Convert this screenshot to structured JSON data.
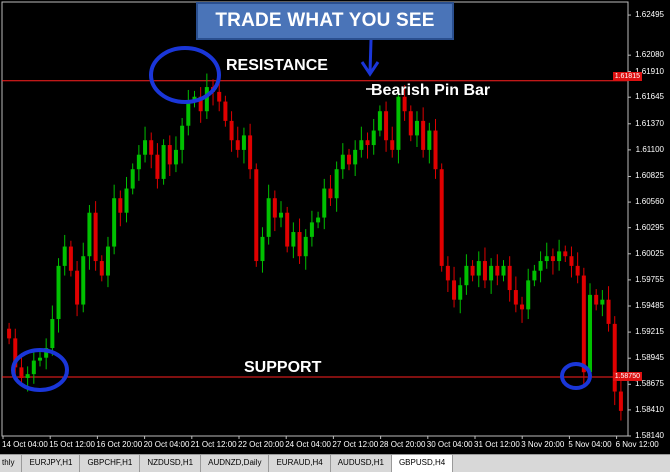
{
  "banner": "TRADE WHAT YOU SEE",
  "annotations": {
    "resistance": "RESISTANCE",
    "support": "SUPPORT",
    "pin_bar": "Bearish Pin Bar"
  },
  "price_scale": [
    "1.62495",
    "1.62080",
    "1.61910",
    "1.61645",
    "1.61370",
    "1.61100",
    "1.60825",
    "1.60560",
    "1.60295",
    "1.60025",
    "1.59755",
    "1.59485",
    "1.59215",
    "1.58945",
    "1.58675",
    "1.58410",
    "1.58140"
  ],
  "price_tags": {
    "resistance": "1.61815",
    "support": "1.58750"
  },
  "time_labels": [
    "14 Oct 04:00",
    "15 Oct 12:00",
    "16 Oct 20:00",
    "20 Oct 04:00",
    "21 Oct 12:00",
    "22 Oct 20:00",
    "24 Oct 04:00",
    "27 Oct 12:00",
    "28 Oct 20:00",
    "30 Oct 04:00",
    "31 Oct 12:00",
    "3 Nov 20:00",
    "5 Nov 04:00",
    "6 Nov 12:00"
  ],
  "tabs": [
    "thly",
    "EURJPY,H1",
    "GBPCHF,H1",
    "NZDUSD,H1",
    "AUDNZD,Daily",
    "EURAUD,H4",
    "AUDUSD,H1",
    "GBPUSD,H4"
  ],
  "active_tab": "GBPUSD,H4",
  "colors": {
    "up": "#00c000",
    "down": "#e00000",
    "level": "#ff2020",
    "circle": "#1a36d8",
    "banner": "#4a74b8"
  },
  "chart_data": {
    "type": "candlestick",
    "symbol": "GBPUSD,H4",
    "ylim": [
      1.5814,
      1.6263
    ],
    "resistance": 1.61815,
    "support": 1.5875,
    "closes": [
      1.5915,
      1.5885,
      1.5874,
      1.5878,
      1.5892,
      1.5895,
      1.5905,
      1.5935,
      1.599,
      1.601,
      1.5985,
      1.595,
      1.6,
      1.6045,
      1.5995,
      1.598,
      1.601,
      1.606,
      1.6045,
      1.607,
      1.609,
      1.6105,
      1.612,
      1.6105,
      1.608,
      1.6115,
      1.6095,
      1.611,
      1.6135,
      1.616,
      1.6165,
      1.615,
      1.6175,
      1.617,
      1.616,
      1.614,
      1.612,
      1.611,
      1.6125,
      1.609,
      1.5995,
      1.602,
      1.606,
      1.604,
      1.6045,
      1.601,
      1.6025,
      1.6,
      1.602,
      1.6035,
      1.604,
      1.607,
      1.606,
      1.609,
      1.6105,
      1.6095,
      1.611,
      1.612,
      1.6115,
      1.613,
      1.615,
      1.612,
      1.611,
      1.6165,
      1.615,
      1.6125,
      1.614,
      1.611,
      1.613,
      1.609,
      1.599,
      1.5975,
      1.5955,
      1.597,
      1.599,
      1.598,
      1.5995,
      1.5975,
      1.599,
      1.598,
      1.599,
      1.5965,
      1.595,
      1.5945,
      1.5975,
      1.5985,
      1.5995,
      1.6,
      1.5995,
      1.6005,
      1.6,
      1.599,
      1.598,
      1.588,
      1.596,
      1.595,
      1.5955,
      1.593,
      1.586,
      1.584
    ]
  }
}
